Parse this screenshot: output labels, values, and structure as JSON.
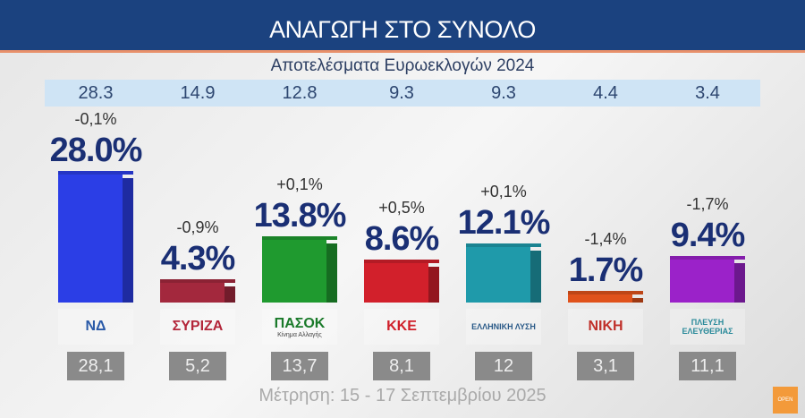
{
  "chart_data": {
    "type": "bar",
    "title": "ΑΝΑΓΩΓΗ ΣΤΟ ΣΥΝΟΛΟ",
    "subtitle": "Αποτελέσματα Ευρωεκλογών 2024",
    "categories": [
      "ΝΔ",
      "ΣΥΡΙΖΑ",
      "ΠΑΣΟΚ",
      "ΚΚΕ",
      "ΕΛΛΗΝΙΚΗ ΛΥΣΗ",
      "ΝΙΚΗ",
      "ΠΛΕΥΣΗ ΕΛΕΥΘΕΡΙΑΣ"
    ],
    "values": [
      28.0,
      4.3,
      13.8,
      8.6,
      12.1,
      1.7,
      9.4
    ],
    "value_labels": [
      "28.0%",
      "4.3%",
      "13.8%",
      "8.6%",
      "12.1%",
      "1.7%",
      "9.4%"
    ],
    "changes": [
      "-0,1%",
      "-0,9%",
      "+0,1%",
      "+0,5%",
      "+0,1%",
      "-1,4%",
      "-1,7%"
    ],
    "euro2024": [
      "28.3",
      "14.9",
      "12.8",
      "9.3",
      "9.3",
      "4.4",
      "3.4"
    ],
    "previous_poll": [
      "28,1",
      "5,2",
      "13,7",
      "8,1",
      "12",
      "3,1",
      "11,1"
    ],
    "colors": [
      "#2b3ee6",
      "#a3283d",
      "#1f9a2f",
      "#d2202b",
      "#1f9aaa",
      "#e0521b",
      "#9b22c9"
    ],
    "logos": [
      {
        "main": "ΝΔ",
        "sub": "",
        "color": "#2a5aa8"
      },
      {
        "main": "ΣΥΡΙΖΑ",
        "sub": "",
        "color": "#b3263a"
      },
      {
        "main": "ΠΑΣΟΚ",
        "sub": "Κίνημα Αλλαγής",
        "color": "#1a7a2a"
      },
      {
        "main": "ΚΚΕ",
        "sub": "",
        "color": "#d0202a"
      },
      {
        "main": "ΕΛΛΗΝΙΚΗ ΛΥΣΗ",
        "sub": "",
        "color": "#2a5a88"
      },
      {
        "main": "ΝΙΚΗ",
        "sub": "",
        "color": "#c0302a"
      },
      {
        "main": "ΠΛΕΥΣΗ ΕΛΕΥΘΕΡΙΑΣ",
        "sub": "",
        "color": "#2a8a9a"
      }
    ]
  },
  "footer": "Μέτρηση: 15 - 17 Σεπτεμβρίου 2025",
  "channel_logo": "OPEN"
}
